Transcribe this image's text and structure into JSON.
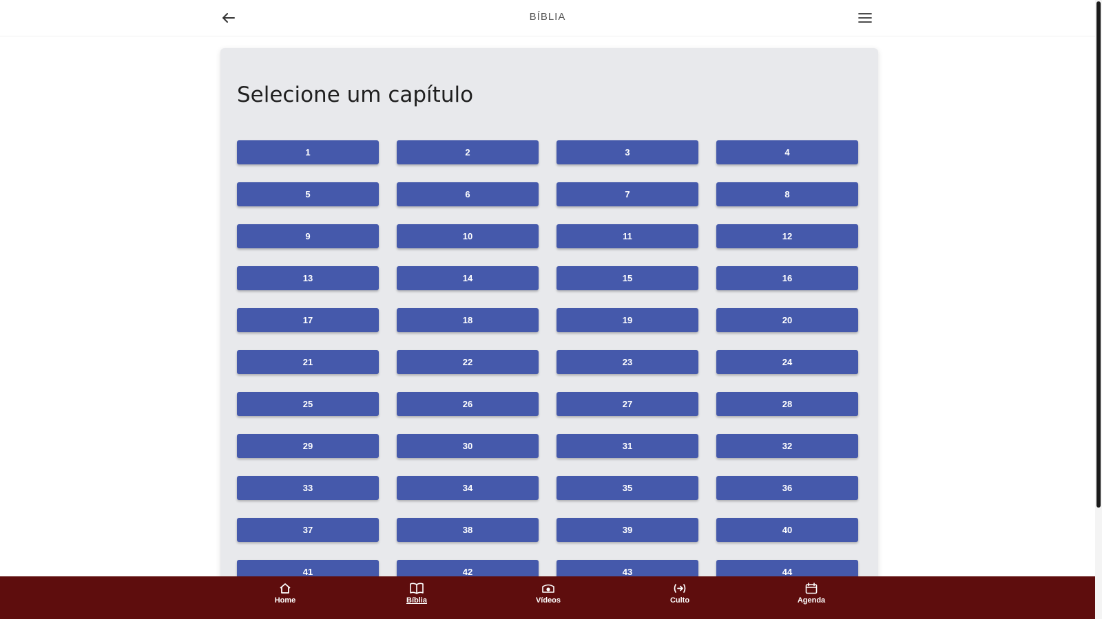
{
  "header": {
    "title": "BÍBLIA",
    "back_icon": "arrow-left-icon",
    "menu_icon": "hamburger-menu-icon"
  },
  "main": {
    "heading": "Selecione um capítulo",
    "chapters": [
      "1",
      "2",
      "3",
      "4",
      "5",
      "6",
      "7",
      "8",
      "9",
      "10",
      "11",
      "12",
      "13",
      "14",
      "15",
      "16",
      "17",
      "18",
      "19",
      "20",
      "21",
      "22",
      "23",
      "24",
      "25",
      "26",
      "27",
      "28",
      "29",
      "30",
      "31",
      "32",
      "33",
      "34",
      "35",
      "36",
      "37",
      "38",
      "39",
      "40",
      "41",
      "42",
      "43",
      "44"
    ]
  },
  "bottom_nav": {
    "items": [
      {
        "label": "Home",
        "icon": "home-icon",
        "active": false
      },
      {
        "label": "Bíblia",
        "icon": "book-icon",
        "active": true
      },
      {
        "label": "Vídeos",
        "icon": "video-icon",
        "active": false
      },
      {
        "label": "Culto",
        "icon": "broadcast-icon",
        "active": false
      },
      {
        "label": "Agenda",
        "icon": "calendar-icon",
        "active": false
      }
    ]
  },
  "colors": {
    "primary_button": "#4559ab",
    "bottom_nav_bg": "#5e0d0d",
    "card_bg": "#e8e9ec"
  }
}
